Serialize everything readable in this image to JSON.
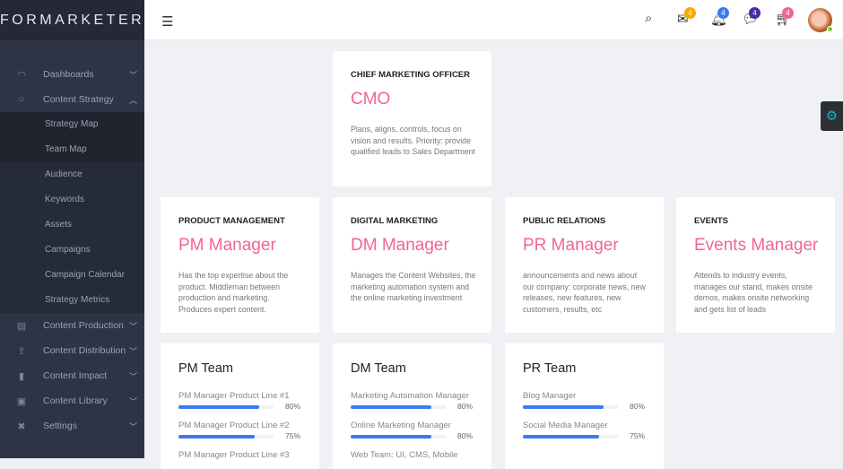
{
  "app": {
    "logo": "FORMARKETER"
  },
  "sidebar": {
    "items": [
      {
        "label": "Dashboards",
        "icon": "gauge-icon",
        "expanded": false
      },
      {
        "label": "Content Strategy",
        "icon": "circle-icon",
        "expanded": true,
        "children": [
          "Strategy Map",
          "Team Map",
          "Audience",
          "Keywords",
          "Assets",
          "Campaigns",
          "Campaign Calendar",
          "Strategy Metrics"
        ]
      },
      {
        "label": "Content Production",
        "icon": "clipboard-icon",
        "expanded": false
      },
      {
        "label": "Content Distribution",
        "icon": "share-icon",
        "expanded": false
      },
      {
        "label": "Content Impact",
        "icon": "bar-chart-icon",
        "expanded": false
      },
      {
        "label": "Content Library",
        "icon": "images-icon",
        "expanded": false
      },
      {
        "label": "Settings",
        "icon": "tools-icon",
        "expanded": false
      }
    ]
  },
  "header": {
    "badges": {
      "mail": "4",
      "bell": "4",
      "chat": "4",
      "cart": "4"
    },
    "colors": {
      "mail": "#ffa800",
      "bell": "#3b7bf0",
      "chat": "#4a2aa5",
      "cart": "#f2658f"
    }
  },
  "cards": [
    {
      "title": "CHIEF MARKETING OFFICER",
      "role": "CMO",
      "desc": "Plans, aligns, controls, focus on vision and results. Priority: provide qualified leads to Sales Department"
    },
    {
      "title": "PRODUCT MANAGEMENT",
      "role": "PM Manager",
      "desc": "Has the top expertise about the product. Middleman between production and marketing. Produces expert content."
    },
    {
      "title": "DIGITAL MARKETING",
      "role": "DM Manager",
      "desc": "Manages the Content Websites, the marketing automation system and the online marketing investment"
    },
    {
      "title": "PUBLIC RELATIONS",
      "role": "PR Manager",
      "desc": "announcements and news about our company: corporate news, new releases, new features, new customers, results, etc"
    },
    {
      "title": "EVENTS",
      "role": "Events Manager",
      "desc": "Attends to industry events, manages our stand, makes onsite demos, makes onsite networking and gets list of leads"
    }
  ],
  "teams": [
    {
      "name": "PM Team",
      "rows": [
        {
          "label": "PM Manager Product Line #1",
          "value": 80,
          "pct": "80%"
        },
        {
          "label": "PM Manager Product Line #2",
          "value": 75,
          "pct": "75%"
        },
        {
          "label": "PM Manager Product Line #3"
        }
      ]
    },
    {
      "name": "DM Team",
      "rows": [
        {
          "label": "Marketing Automation Manager",
          "value": 80,
          "pct": "80%"
        },
        {
          "label": "Online Marketing Manager",
          "value": 80,
          "pct": "80%"
        },
        {
          "label": "Web Team: UI, CMS, Mobile"
        }
      ]
    },
    {
      "name": "PR Team",
      "rows": [
        {
          "label": "Blog Manager",
          "value": 80,
          "pct": "80%"
        },
        {
          "label": "Social Media Manager",
          "value": 75,
          "pct": "75%"
        }
      ]
    }
  ]
}
